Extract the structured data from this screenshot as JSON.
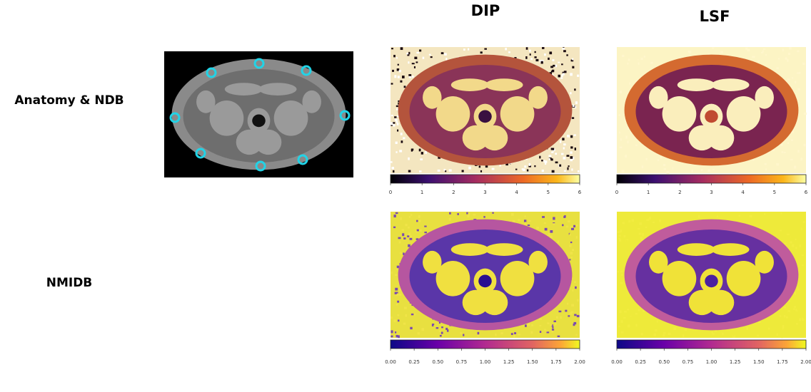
{
  "columns": [
    "DIP",
    "LSF"
  ],
  "rows": [
    {
      "label": "Anatomy & NDB",
      "colorbar": {
        "range": [
          0,
          6
        ],
        "ticks": [
          0,
          1,
          2,
          3,
          4,
          5,
          6
        ]
      }
    },
    {
      "label": "NMIDB",
      "colorbar": {
        "range": [
          0,
          2
        ],
        "ticks": [
          {
            "value": 0,
            "label": "0.00"
          },
          {
            "value": 0.25,
            "label": "0.25"
          },
          {
            "value": 0.5,
            "label": "0.50"
          },
          {
            "value": 0.75,
            "label": "0.75"
          },
          {
            "value": 1,
            "label": "1.00"
          },
          {
            "value": 1.25,
            "label": "1.25"
          },
          {
            "value": 1.5,
            "label": "1.50"
          },
          {
            "value": 1.75,
            "label": "1.75"
          },
          {
            "value": 2,
            "label": "2.00"
          }
        ]
      }
    }
  ]
}
